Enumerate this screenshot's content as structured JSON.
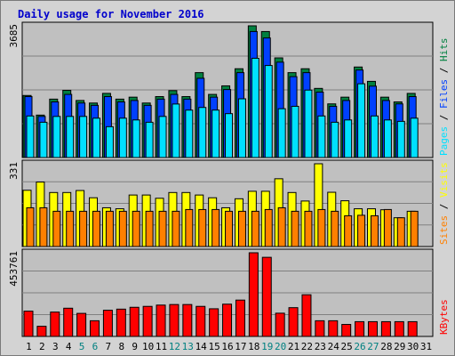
{
  "title": "Daily usage for November 2016",
  "colors": {
    "hits": "#008040",
    "files": "#0040ff",
    "pages": "#00e0ff",
    "visits": "#ffff00",
    "sites": "#ff8000",
    "kbytes": "#ff0000",
    "weekday_label": "#000000",
    "weekend_label": "#008080"
  },
  "chart_data": [
    {
      "type": "bar",
      "panel": "hits-files-pages",
      "ymax_label": "3685",
      "legend": [
        "Pages",
        "Files",
        "Hits"
      ],
      "series": [
        {
          "name": "Hits",
          "values": [
            1736,
            1187,
            1634,
            1880,
            1596,
            1525,
            1795,
            1634,
            1689,
            1525,
            1705,
            1872,
            1705,
            2375,
            1766,
            2005,
            2484,
            3685,
            3525,
            2788,
            2375,
            2484,
            1934,
            1501,
            1689,
            2532,
            2131,
            1689,
            1556,
            1794
          ]
        },
        {
          "name": "Files",
          "values": [
            1705,
            1150,
            1556,
            1766,
            1525,
            1460,
            1705,
            1556,
            1596,
            1460,
            1634,
            1766,
            1634,
            2217,
            1689,
            1902,
            2375,
            3525,
            3345,
            2668,
            2263,
            2375,
            1830,
            1433,
            1596,
            2448,
            1997,
            1596,
            1501,
            1705
          ]
        },
        {
          "name": "Pages",
          "values": [
            1163,
            987,
            1150,
            1150,
            1150,
            1101,
            863,
            1101,
            1051,
            987,
            1150,
            1497,
            1327,
            1401,
            1327,
            1228,
            1643,
            2777,
            2575,
            1366,
            1433,
            1887,
            1163,
            987,
            1051,
            2064,
            1163,
            1051,
            1012,
            1101
          ]
        }
      ]
    },
    {
      "type": "bar",
      "panel": "visits-sites",
      "ymax_label": "331",
      "legend": [
        "Sites",
        "Visits"
      ],
      "series": [
        {
          "name": "Visits",
          "values": [
            225,
            258,
            216,
            216,
            224,
            195,
            155,
            151,
            206,
            206,
            193,
            216,
            216,
            206,
            195,
            155,
            191,
            221,
            221,
            271,
            216,
            182,
            331,
            217,
            183,
            151,
            151,
            147,
            115,
            141
          ]
        },
        {
          "name": "Sites",
          "values": [
            155,
            155,
            141,
            141,
            141,
            141,
            141,
            141,
            141,
            141,
            141,
            141,
            148,
            148,
            148,
            141,
            141,
            141,
            148,
            155,
            141,
            141,
            148,
            141,
            123,
            125,
            123,
            148,
            115,
            141
          ]
        }
      ]
    },
    {
      "type": "bar",
      "panel": "kbytes",
      "ymax_label": "453761",
      "legend": [
        "KBytes"
      ],
      "series": [
        {
          "name": "KBytes",
          "values": [
            137000,
            55000,
            132000,
            153000,
            125000,
            85000,
            142000,
            148000,
            158000,
            163000,
            170000,
            173000,
            173000,
            163000,
            150000,
            175000,
            197000,
            453761,
            429000,
            126000,
            156000,
            226000,
            85000,
            85000,
            65000,
            80000,
            80000,
            80000,
            80000,
            80000
          ]
        }
      ]
    }
  ],
  "x_labels": [
    "1",
    "2",
    "3",
    "4",
    "5",
    "6",
    "7",
    "8",
    "9",
    "10",
    "11",
    "12",
    "13",
    "14",
    "15",
    "16",
    "17",
    "18",
    "19",
    "20",
    "21",
    "22",
    "23",
    "24",
    "25",
    "26",
    "27",
    "28",
    "29",
    "30",
    "31"
  ],
  "weekend_days": [
    5,
    6,
    12,
    13,
    19,
    20,
    26,
    27
  ]
}
